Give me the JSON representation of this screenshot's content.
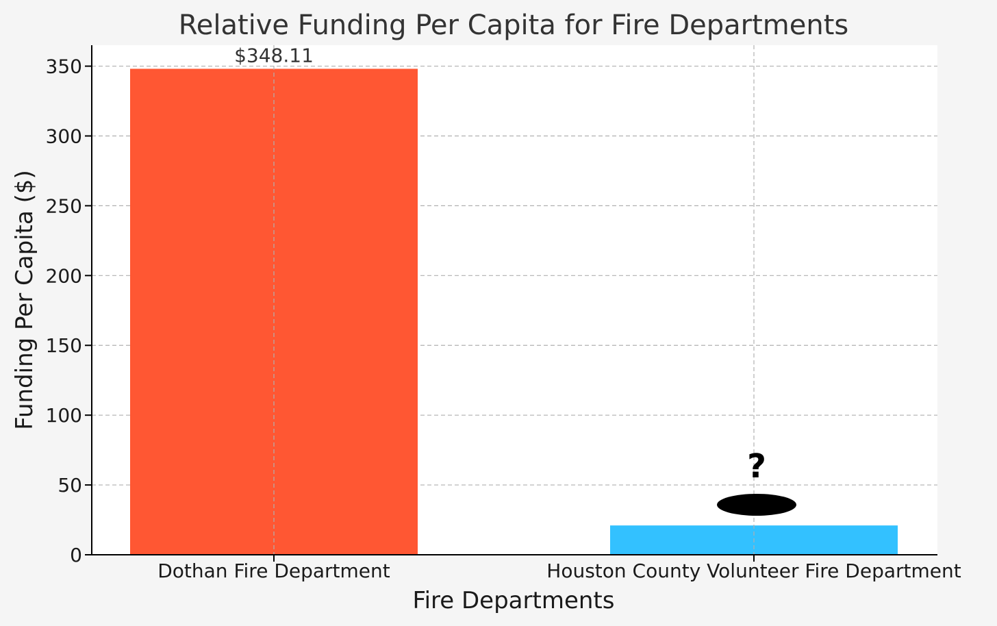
{
  "chart_data": {
    "type": "bar",
    "title": "Relative Funding Per Capita for Fire Departments",
    "xlabel": "Fire Departments",
    "ylabel": "Funding Per Capita ($)",
    "categories": [
      "Dothan Fire Department",
      "Houston County Volunteer Fire Department"
    ],
    "values": [
      348.11,
      21
    ],
    "colors": [
      "#ff5733",
      "#33c1ff"
    ],
    "data_labels": [
      "$348.11",
      ""
    ],
    "annotations": [
      {
        "category": "Houston County Volunteer Fire Department",
        "text": "?"
      }
    ],
    "ylim": [
      0,
      365
    ],
    "yticks": [
      0,
      50,
      100,
      150,
      200,
      250,
      300,
      350
    ],
    "grid": true
  }
}
